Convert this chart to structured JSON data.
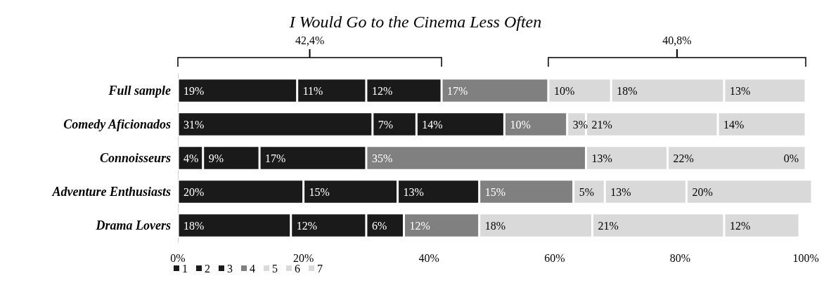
{
  "chart_data": {
    "type": "bar",
    "orientation": "horizontal",
    "stacked": true,
    "title": "I Would Go to the Cinema Less Often",
    "categories": [
      "Full sample",
      "Comedy Aficionados",
      "Connoisseurs",
      "Adventure Enthusiasts",
      "Drama Lovers"
    ],
    "series": [
      {
        "name": "1",
        "color": "#1a1a1a",
        "values": [
          19,
          31,
          4,
          20,
          18
        ],
        "value_labels": [
          "19%",
          "31%",
          "4%",
          "20%",
          "18%"
        ]
      },
      {
        "name": "2",
        "color": "#1a1a1a",
        "values": [
          11,
          7,
          9,
          15,
          12
        ],
        "value_labels": [
          "11%",
          "7%",
          "9%",
          "15%",
          "12%"
        ]
      },
      {
        "name": "3",
        "color": "#1a1a1a",
        "values": [
          12,
          14,
          17,
          13,
          6
        ],
        "value_labels": [
          "12%",
          "14%",
          "17%",
          "13%",
          "6%"
        ]
      },
      {
        "name": "4",
        "color": "#808080",
        "values": [
          17,
          10,
          35,
          15,
          12
        ],
        "value_labels": [
          "17%",
          "10%",
          "35%",
          "15%",
          "12%"
        ]
      },
      {
        "name": "5",
        "color": "#d9d9d9",
        "values": [
          10,
          3,
          13,
          5,
          18
        ],
        "value_labels": [
          "10%",
          "3%",
          "13%",
          "5%",
          "18%"
        ]
      },
      {
        "name": "6",
        "color": "#d9d9d9",
        "values": [
          18,
          21,
          22,
          13,
          21
        ],
        "value_labels": [
          "18%",
          "21%",
          "22%",
          "13%",
          "21%"
        ]
      },
      {
        "name": "7",
        "color": "#d9d9d9",
        "values": [
          13,
          14,
          0,
          20,
          12
        ],
        "value_labels": [
          "13%",
          "14%",
          "0%",
          "20%",
          "12%"
        ]
      }
    ],
    "xlim": [
      0,
      101
    ],
    "xticks": [
      {
        "value": 0,
        "label": "0%"
      },
      {
        "value": 20,
        "label": "20%"
      },
      {
        "value": 40,
        "label": "40%"
      },
      {
        "value": 60,
        "label": "60%"
      },
      {
        "value": 80,
        "label": "80%"
      },
      {
        "value": 100,
        "label": "100%"
      }
    ],
    "annotations": [
      "42,4%",
      "40,8%"
    ],
    "grid": false,
    "legend": "bottom left"
  }
}
